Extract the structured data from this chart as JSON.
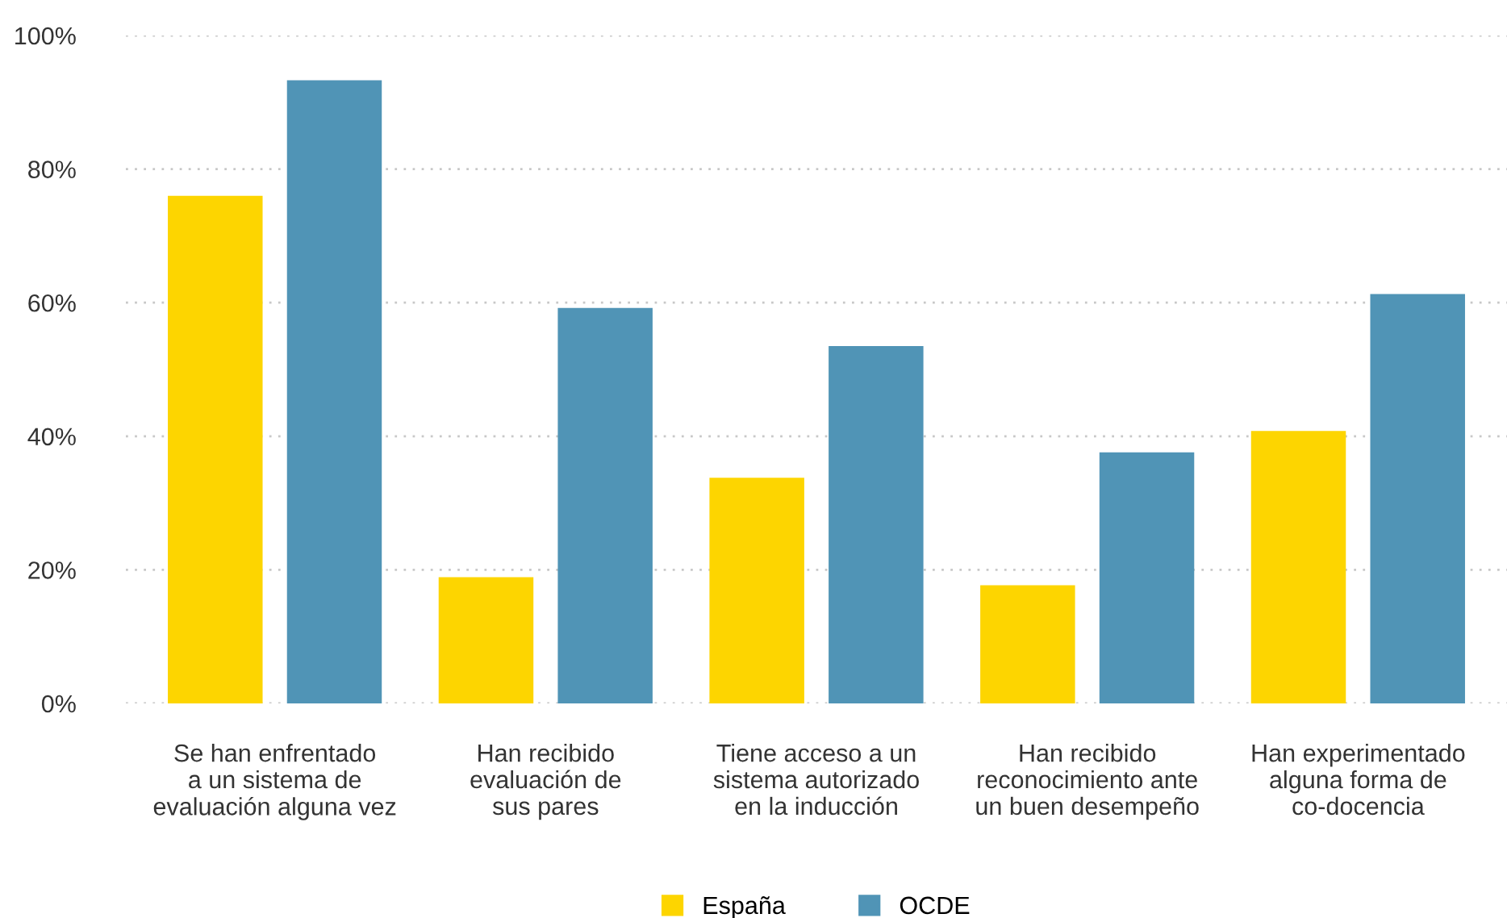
{
  "chart_data": {
    "type": "bar",
    "categories": [
      "Se han enfrentado\na un sistema de\nevaluación alguna vez",
      "Han recibido\nevaluación de\nsus pares",
      "Tiene acceso a un\nsistema autorizado\nen la inducción",
      "Han recibido\nreconocimiento ante\nun buen desempeño",
      "Han experimentado\nalguna forma de\nco-docencia"
    ],
    "series": [
      {
        "name": "España",
        "color": "#fdd500",
        "values": [
          76,
          18.9,
          33.8,
          17.7,
          40.8
        ]
      },
      {
        "name": "OCDE",
        "color": "#5094b6",
        "values": [
          93.3,
          59.2,
          53.5,
          37.6,
          61.3
        ]
      }
    ],
    "ylim": [
      0,
      100
    ],
    "yticks": [
      {
        "value": 0,
        "label": "0%"
      },
      {
        "value": 20,
        "label": "20%"
      },
      {
        "value": 40,
        "label": "40%"
      },
      {
        "value": 60,
        "label": "60%"
      },
      {
        "value": 80,
        "label": "80%"
      },
      {
        "value": 100,
        "label": "100%"
      }
    ],
    "grid": "y",
    "legend": "bottom"
  }
}
